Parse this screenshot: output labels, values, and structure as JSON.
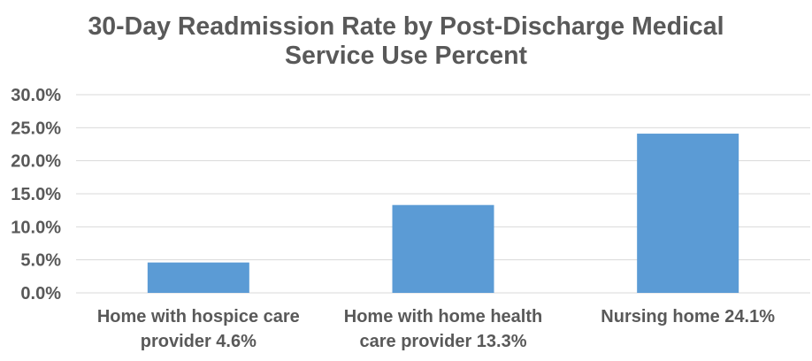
{
  "chart_data": {
    "type": "bar",
    "title_lines": [
      "30-Day Readmission Rate by Post-Discharge Medical",
      "Service Use Percent"
    ],
    "category_lines": [
      [
        "Home with hospice care",
        "provider 4.6%"
      ],
      [
        "Home with home health",
        "care provider 13.3%"
      ],
      [
        "Nursing home 24.1%"
      ]
    ],
    "values": [
      4.6,
      13.3,
      24.1
    ],
    "ylim": [
      0,
      30
    ],
    "y_ticks": [
      "0.0%",
      "5.0%",
      "10.0%",
      "15.0%",
      "20.0%",
      "25.0%",
      "30.0%"
    ],
    "grid": true,
    "legend": "none",
    "bar_color": "#5b9bd5",
    "text_color": "#595959",
    "grid_color": "#d9d9d9"
  }
}
